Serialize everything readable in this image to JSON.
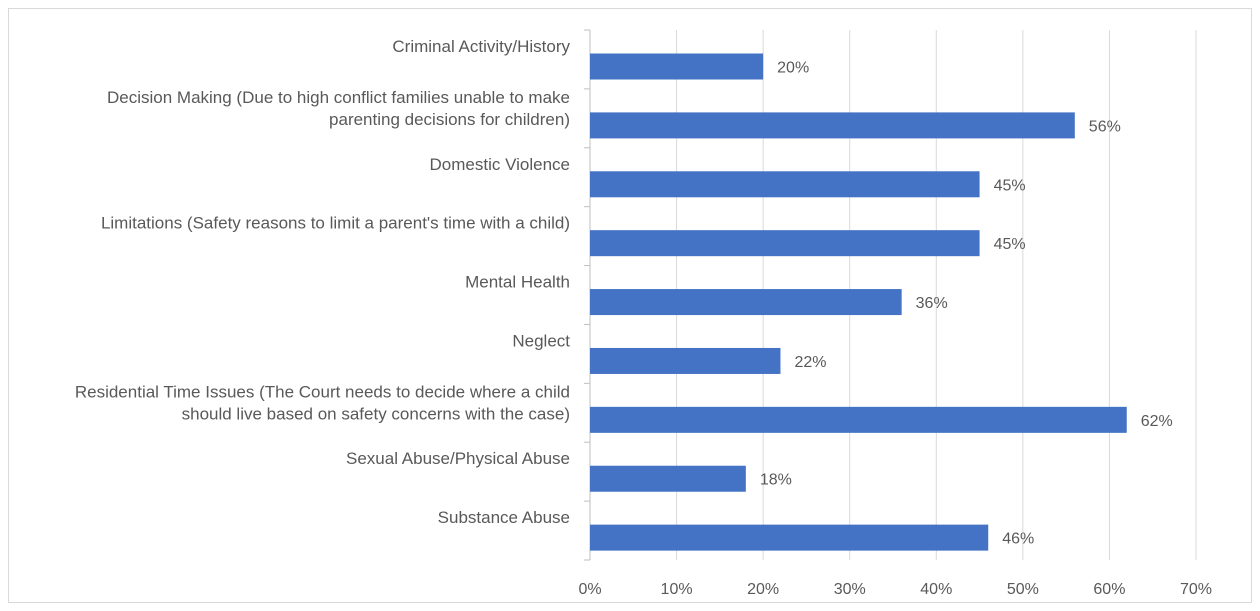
{
  "chart_data": {
    "type": "bar",
    "orientation": "horizontal",
    "categories": [
      [
        "Criminal Activity/History"
      ],
      [
        "Decision Making (Due to high conflict families unable to make",
        "parenting decisions for children)"
      ],
      [
        "Domestic Violence"
      ],
      [
        "Limitations (Safety reasons to limit a parent's time with a child)"
      ],
      [
        "Mental Health"
      ],
      [
        "Neglect"
      ],
      [
        "Residential Time Issues (The Court needs to decide where a child",
        "should live based on safety concerns with the case)"
      ],
      [
        "Sexual Abuse/Physical Abuse"
      ],
      [
        "Substance Abuse"
      ]
    ],
    "values": [
      20,
      56,
      45,
      45,
      36,
      22,
      62,
      18,
      46
    ],
    "data_labels": [
      "20%",
      "56%",
      "45%",
      "45%",
      "36%",
      "22%",
      "62%",
      "18%",
      "46%"
    ],
    "xlim": [
      0,
      70
    ],
    "xticks": [
      0,
      10,
      20,
      30,
      40,
      50,
      60,
      70
    ],
    "xtick_labels": [
      "0%",
      "10%",
      "20%",
      "30%",
      "40%",
      "50%",
      "60%",
      "70%"
    ],
    "grid": "vertical",
    "legend": "none",
    "bar_color": "#4472C4",
    "grid_color": "#d9d9d9",
    "text_color": "#595959"
  }
}
